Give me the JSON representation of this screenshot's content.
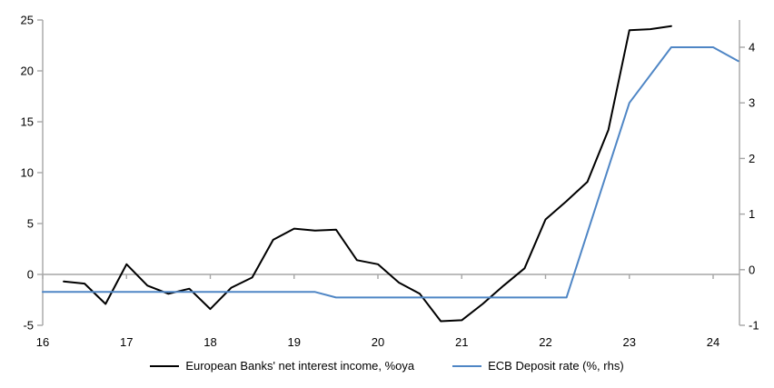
{
  "chart_data": {
    "type": "line",
    "title": "",
    "xlabel": "",
    "ylabel_left": "",
    "ylabel_right": "",
    "x_range": [
      16,
      24.31
    ],
    "x_ticks": [
      16,
      17,
      18,
      19,
      20,
      21,
      22,
      23,
      24
    ],
    "left_axis": {
      "range": [
        -5,
        25
      ],
      "ticks": [
        25,
        20,
        15,
        10,
        5,
        0,
        -5
      ]
    },
    "right_axis": {
      "range": [
        -1,
        4.49
      ],
      "ticks": [
        4,
        3,
        2,
        1,
        0,
        -1
      ]
    },
    "grid": "zero-line-only",
    "legend_position": "bottom-center",
    "axis_color": "#a6a6a6",
    "background_color": "#ffffff",
    "series": [
      {
        "name": "European Banks' net interest income, %oya",
        "axis": "left",
        "color": "#000000",
        "x": [
          16.25,
          16.5,
          16.75,
          17.0,
          17.25,
          17.5,
          17.75,
          18.0,
          18.25,
          18.5,
          18.75,
          19.0,
          19.25,
          19.5,
          19.75,
          20.0,
          20.25,
          20.5,
          20.75,
          21.0,
          21.25,
          21.5,
          21.75,
          22.0,
          22.25,
          22.5,
          22.75,
          23.0,
          23.25,
          23.5
        ],
        "values": [
          -0.7,
          -0.9,
          -2.9,
          1.0,
          -1.1,
          -1.9,
          -1.4,
          -3.4,
          -1.3,
          -0.3,
          3.4,
          4.5,
          4.3,
          4.4,
          1.4,
          1.0,
          -0.8,
          -1.9,
          -4.6,
          -4.5,
          -2.9,
          -1.1,
          0.6,
          5.4,
          7.2,
          9.1,
          14.2,
          24.0,
          24.1,
          24.4
        ]
      },
      {
        "name": "ECB Deposit rate (%, rhs)",
        "axis": "right",
        "color": "#4f86c5",
        "x": [
          16.0,
          19.25,
          19.5,
          22.25,
          23.0,
          23.5,
          24.0,
          24.3
        ],
        "values": [
          -0.4,
          -0.4,
          -0.5,
          -0.5,
          3.0,
          4.0,
          4.0,
          3.75
        ]
      }
    ]
  }
}
